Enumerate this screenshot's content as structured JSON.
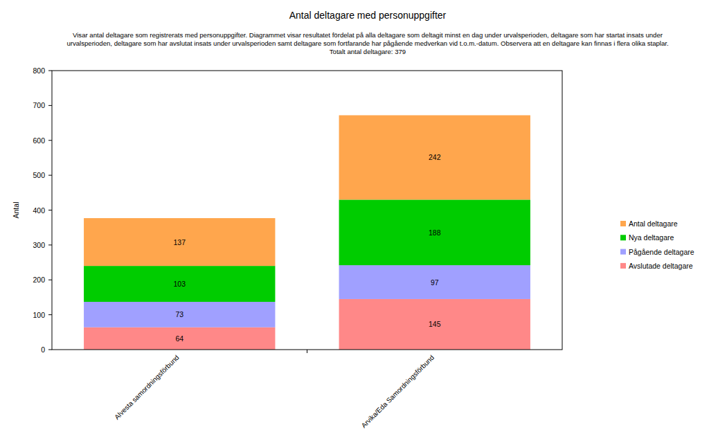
{
  "chart_data": {
    "type": "bar",
    "stacked": true,
    "data_labels": true,
    "grid": false,
    "legend": "right",
    "title": "Antal deltagare med personuppgifter",
    "subtitle": [
      "Visar antal deltagare som registrerats med personuppgifter. Diagrammet visar resultatet fördelat på alla deltagare som deltagit minst en dag under urvalsperioden, deltagare som har startat insats under",
      "urvalsperioden, deltagare som har avslutat insats under urvalsperioden samt deltagare som fortfarande har pågående medverkan vid t.o.m.-datum. Observera att en deltagare kan finnas i flera olika staplar.",
      "Totalt antal deltagare: 379"
    ],
    "y_label": "Antal",
    "categories": [
      "Alvesta samordningsförbund",
      "Arvika/Eda Samordningsförbund"
    ],
    "series": [
      {
        "name": "Avslutade deltagare",
        "color": "#ff8888",
        "values": [
          64,
          145
        ]
      },
      {
        "name": "Pågående deltagare",
        "color": "#a0a0ff",
        "values": [
          73,
          97
        ]
      },
      {
        "name": "Nya deltagare",
        "color": "#00cc00",
        "values": [
          103,
          188
        ]
      },
      {
        "name": "Antal deltagare",
        "color": "#ffa64d",
        "values": [
          137,
          242
        ]
      }
    ],
    "ylim": [
      0,
      800
    ],
    "yticks": [
      0,
      100,
      200,
      300,
      400,
      500,
      600,
      700,
      800
    ]
  }
}
